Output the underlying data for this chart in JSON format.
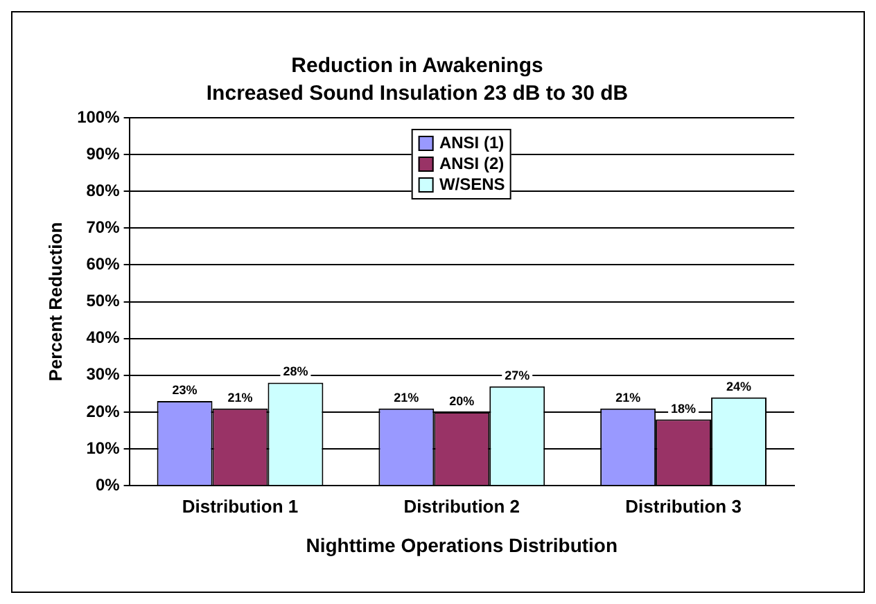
{
  "chart_data": {
    "type": "bar",
    "title": "Reduction in Awakenings",
    "subtitle": "Increased Sound Insulation 23 dB to 30 dB",
    "xlabel": "Nighttime Operations Distribution",
    "ylabel": "Percent Reduction",
    "categories": [
      "Distribution 1",
      "Distribution 2",
      "Distribution 3"
    ],
    "series": [
      {
        "name": "ANSI (1)",
        "color": "#9999ff",
        "values": [
          23,
          21,
          21
        ],
        "value_labels": [
          "23%",
          "21%",
          "21%"
        ]
      },
      {
        "name": "ANSI (2)",
        "color": "#993366",
        "values": [
          21,
          20,
          18
        ],
        "value_labels": [
          "21%",
          "20%",
          "18%"
        ]
      },
      {
        "name": "W/SENS",
        "color": "#ccffff",
        "values": [
          28,
          27,
          24
        ],
        "value_labels": [
          "28%",
          "27%",
          "24%"
        ]
      }
    ],
    "ylim": [
      0,
      100
    ],
    "yticks": [
      {
        "value": 0,
        "label": "0%"
      },
      {
        "value": 10,
        "label": "10%"
      },
      {
        "value": 20,
        "label": "20%"
      },
      {
        "value": 30,
        "label": "30%"
      },
      {
        "value": 40,
        "label": "40%"
      },
      {
        "value": 50,
        "label": "50%"
      },
      {
        "value": 60,
        "label": "60%"
      },
      {
        "value": 70,
        "label": "70%"
      },
      {
        "value": 80,
        "label": "80%"
      },
      {
        "value": 90,
        "label": "90%"
      },
      {
        "value": 100,
        "label": "100%"
      }
    ],
    "grid": "y",
    "legend": "top"
  }
}
